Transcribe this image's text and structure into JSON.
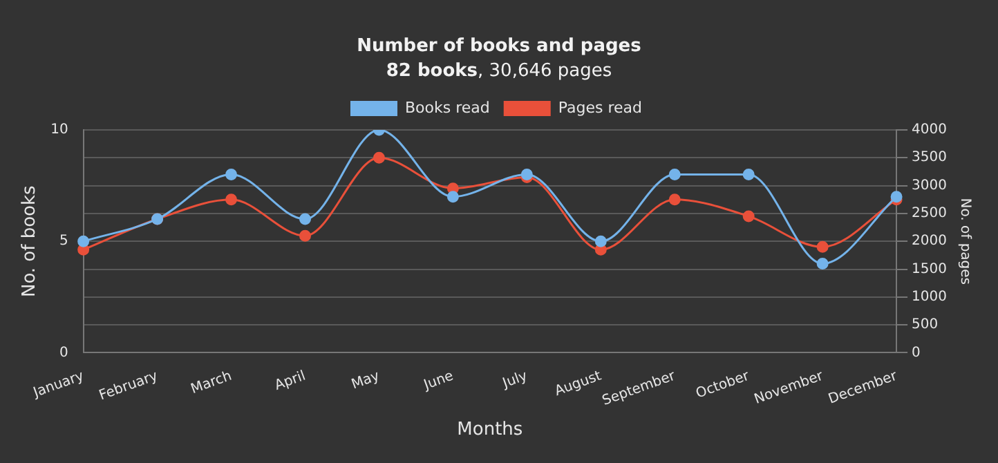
{
  "chart_data": {
    "type": "line",
    "title": "Number of books and pages",
    "subtitle": "82 books, 30,646 pages",
    "xlabel": "Months",
    "ylabel": "No. of books",
    "y2label": "No. of pages",
    "categories": [
      "January",
      "February",
      "March",
      "April",
      "May",
      "June",
      "July",
      "August",
      "September",
      "October",
      "November",
      "December"
    ],
    "series": [
      {
        "name": "Books read",
        "color": "#74b3ea",
        "values": [
          5,
          6,
          8,
          6,
          10,
          7,
          8,
          5,
          8,
          8,
          4,
          7
        ]
      },
      {
        "name": "Pages read",
        "color": "#e9503a",
        "axis": "y2",
        "values": [
          1850,
          2400,
          2750,
          2100,
          3500,
          2950,
          3150,
          1850,
          2750,
          2450,
          1900,
          2750
        ]
      }
    ],
    "ylim": [
      0,
      10
    ],
    "yticks": [
      0,
      5,
      10
    ],
    "y2lim": [
      0,
      4000
    ],
    "y2ticks": [
      0,
      500,
      1000,
      1500,
      2000,
      2500,
      3000,
      3500,
      4000
    ],
    "grid": "y",
    "legend": "top",
    "marker": "circle",
    "line_style": "solid"
  }
}
